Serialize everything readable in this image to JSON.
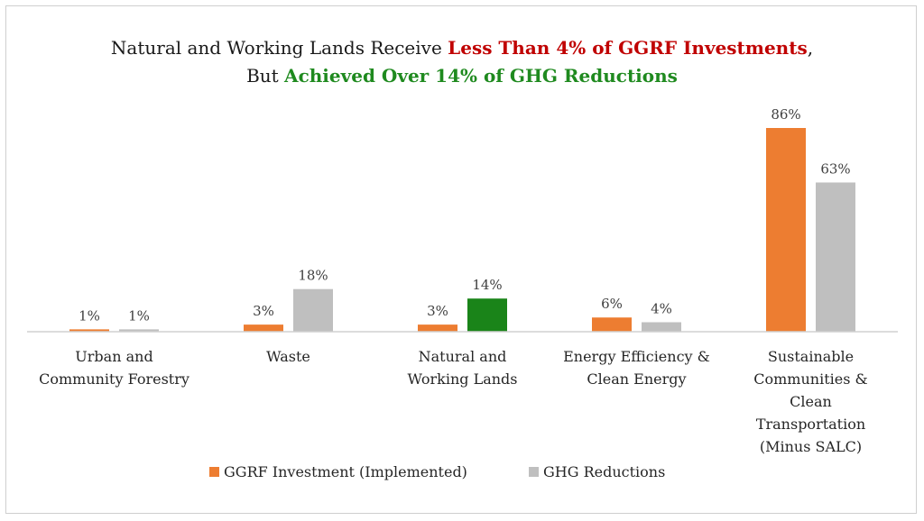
{
  "chart_data": {
    "type": "bar",
    "title_line1": {
      "plain": "Natural and Working Lands Receive ",
      "highlight": "Less Than 4% of GGRF Investments",
      "suffix": ","
    },
    "title_line2": {
      "plain": "But ",
      "highlight": "Achieved Over 14% of GHG Reductions"
    },
    "categories": [
      [
        "Urban and",
        "Community Forestry"
      ],
      [
        "Waste"
      ],
      [
        "Natural and",
        "Working Lands"
      ],
      [
        "Energy Efficiency &",
        "Clean Energy"
      ],
      [
        "Sustainable",
        "Communities &",
        "Clean",
        "Transportation",
        "(Minus SALC)"
      ]
    ],
    "series": [
      {
        "name": "GGRF Investment (Implemented)",
        "color": "#ed7d31",
        "values": [
          1,
          3,
          3,
          6,
          86
        ],
        "labels": [
          "1%",
          "3%",
          "3%",
          "6%",
          "86%"
        ]
      },
      {
        "name": "GHG Reductions",
        "color": "#bfbfbf",
        "highlight_color": "#1a8419",
        "highlight_index": 2,
        "values": [
          1,
          18,
          14,
          4,
          63
        ],
        "labels": [
          "1%",
          "18%",
          "14%",
          "4%",
          "63%"
        ]
      }
    ],
    "ylim": [
      0,
      86
    ],
    "grid": false,
    "legend_position": "bottom"
  },
  "colors": {
    "title_red": "#c00000",
    "title_green": "#1f8a1f",
    "axis": "#d0d0d0"
  }
}
